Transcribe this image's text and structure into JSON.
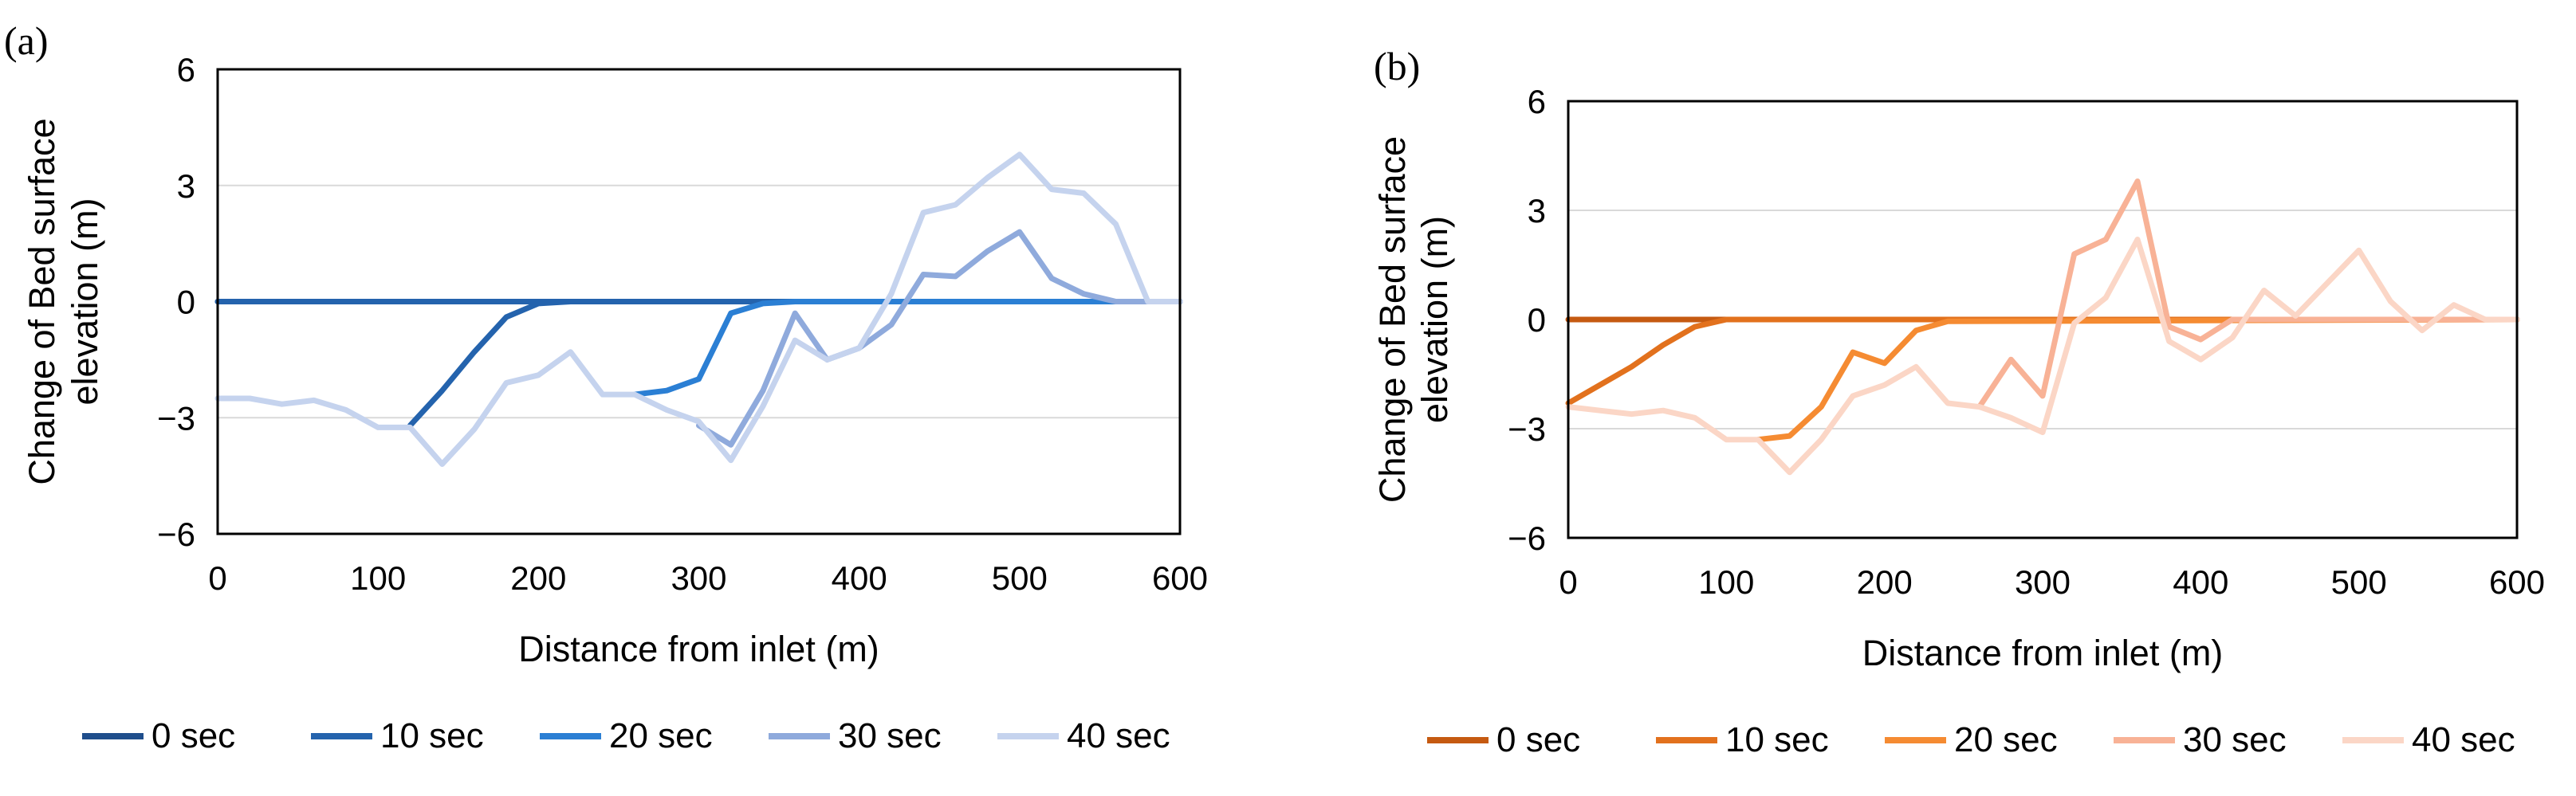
{
  "chart_data": [
    {
      "type": "line",
      "panel_label": "(a)",
      "xlabel": "Distance from inlet (m)",
      "ylabel_lines": [
        "Change of Bed surface",
        "elevation (m)"
      ],
      "xlim": [
        0,
        600
      ],
      "ylim": [
        -6,
        6
      ],
      "xticks": [
        "0",
        "100",
        "200",
        "300",
        "400",
        "500",
        "600"
      ],
      "xtick_values": [
        0,
        100,
        200,
        300,
        400,
        500,
        600
      ],
      "yticks": [
        "6",
        "3",
        "0",
        "−3",
        "−6"
      ],
      "ytick_values": [
        6,
        3,
        0,
        -3,
        -6
      ],
      "gridlines_y": [
        3,
        -3
      ],
      "legend_position": "bottom",
      "series": [
        {
          "name": "0 sec",
          "color": "#1f4e8c",
          "x": [
            0,
            100,
            200,
            300,
            400,
            500,
            600
          ],
          "y": [
            0,
            0,
            0,
            0,
            0,
            0,
            0
          ]
        },
        {
          "name": "10 sec",
          "color": "#2463ad",
          "x": [
            0,
            120,
            140,
            160,
            180,
            200,
            220,
            600
          ],
          "y": [
            0,
            0,
            0,
            0,
            0,
            0,
            0,
            0
          ]
        },
        {
          "name": "10 sec",
          "color": "#2463ad",
          "x": [
            120,
            140,
            160,
            180,
            200,
            220,
            600
          ],
          "y": [
            -3.2,
            -2.3,
            -1.3,
            -0.4,
            -0.05,
            0,
            0
          ]
        },
        {
          "name": "20 sec",
          "color": "#2b7fd4",
          "x": [
            260,
            280,
            300,
            320,
            340,
            360,
            600
          ],
          "y": [
            -2.4,
            -2.3,
            -2.0,
            -0.3,
            -0.05,
            0,
            0
          ]
        },
        {
          "name": "30 sec",
          "color": "#8faadc",
          "x": [
            300,
            320,
            340,
            360,
            380,
            400,
            420,
            440,
            460,
            480,
            500,
            520,
            540,
            560,
            580,
            600
          ],
          "y": [
            -3.2,
            -3.7,
            -2.3,
            -0.3,
            -1.5,
            -1.2,
            -0.6,
            0.7,
            0.65,
            1.3,
            1.8,
            0.6,
            0.2,
            0,
            0,
            0
          ]
        },
        {
          "name": "40 sec",
          "color": "#c5d3ee",
          "x": [
            0,
            20,
            40,
            60,
            80,
            100,
            120,
            140,
            160,
            180,
            200,
            220,
            240,
            260,
            280,
            300,
            320,
            340,
            360,
            380,
            400,
            420,
            440,
            460,
            480,
            500,
            520,
            540,
            560,
            580,
            600
          ],
          "y": [
            -2.5,
            -2.5,
            -2.65,
            -2.55,
            -2.8,
            -3.25,
            -3.25,
            -4.2,
            -3.3,
            -2.1,
            -1.9,
            -1.3,
            -2.4,
            -2.4,
            -2.8,
            -3.1,
            -4.1,
            -2.7,
            -1.0,
            -1.5,
            -1.2,
            0.2,
            2.3,
            2.5,
            3.2,
            3.8,
            2.9,
            2.8,
            2.0,
            0,
            0
          ]
        }
      ],
      "legend": [
        {
          "name": "0 sec",
          "color": "#1f4e8c"
        },
        {
          "name": "10 sec",
          "color": "#2463ad"
        },
        {
          "name": "20 sec",
          "color": "#2b7fd4"
        },
        {
          "name": "30 sec",
          "color": "#8faadc"
        },
        {
          "name": "40 sec",
          "color": "#c5d3ee"
        }
      ]
    },
    {
      "type": "line",
      "panel_label": "(b)",
      "xlabel": "Distance from inlet (m)",
      "ylabel_lines": [
        "Change of Bed surface",
        "elevation (m)"
      ],
      "xlim": [
        0,
        600
      ],
      "ylim": [
        -6,
        6
      ],
      "xticks": [
        "0",
        "100",
        "200",
        "300",
        "400",
        "500",
        "600"
      ],
      "xtick_values": [
        0,
        100,
        200,
        300,
        400,
        500,
        600
      ],
      "yticks": [
        "6",
        "3",
        "0",
        "−3",
        "−6"
      ],
      "ytick_values": [
        6,
        3,
        0,
        -3,
        -6
      ],
      "gridlines_y": [
        3,
        -3
      ],
      "legend_position": "bottom",
      "series": [
        {
          "name": "0 sec",
          "color": "#c55a11",
          "x": [
            0,
            100,
            200,
            300,
            400,
            500,
            600
          ],
          "y": [
            0,
            0,
            0,
            0,
            0,
            0,
            0
          ]
        },
        {
          "name": "10 sec",
          "color": "#e2711d",
          "x": [
            0,
            20,
            40,
            60,
            80,
            100,
            600
          ],
          "y": [
            -2.3,
            -1.8,
            -1.3,
            -0.7,
            -0.2,
            0,
            0
          ]
        },
        {
          "name": "20 sec",
          "color": "#f58b32",
          "x": [
            120,
            140,
            160,
            180,
            200,
            220,
            240,
            600
          ],
          "y": [
            -3.3,
            -3.2,
            -2.4,
            -0.9,
            -1.2,
            -0.3,
            -0.05,
            0
          ]
        },
        {
          "name": "30 sec",
          "color": "#f8b296",
          "x": [
            260,
            280,
            300,
            320,
            340,
            360,
            380,
            400,
            420,
            600
          ],
          "y": [
            -2.4,
            -1.1,
            -2.1,
            1.8,
            2.2,
            3.8,
            -0.2,
            -0.55,
            0,
            0
          ]
        },
        {
          "name": "40 sec",
          "color": "#fbd6c6",
          "x": [
            0,
            20,
            40,
            60,
            80,
            100,
            120,
            140,
            160,
            180,
            200,
            220,
            240,
            260,
            280,
            300,
            320,
            340,
            360,
            380,
            400,
            420,
            440,
            460,
            480,
            500,
            520,
            540,
            560,
            580,
            600
          ],
          "y": [
            -2.4,
            -2.5,
            -2.6,
            -2.5,
            -2.7,
            -3.3,
            -3.3,
            -4.2,
            -3.3,
            -2.1,
            -1.8,
            -1.3,
            -2.3,
            -2.4,
            -2.7,
            -3.1,
            -0.1,
            0.6,
            2.2,
            -0.6,
            -1.1,
            -0.5,
            0.8,
            0.1,
            1.0,
            1.9,
            0.5,
            -0.3,
            0.4,
            0,
            0
          ]
        }
      ],
      "legend": [
        {
          "name": "0 sec",
          "color": "#c55a11"
        },
        {
          "name": "10 sec",
          "color": "#e2711d"
        },
        {
          "name": "20 sec",
          "color": "#f58b32"
        },
        {
          "name": "30 sec",
          "color": "#f8b296"
        },
        {
          "name": "40 sec",
          "color": "#fbd6c6"
        }
      ]
    }
  ]
}
